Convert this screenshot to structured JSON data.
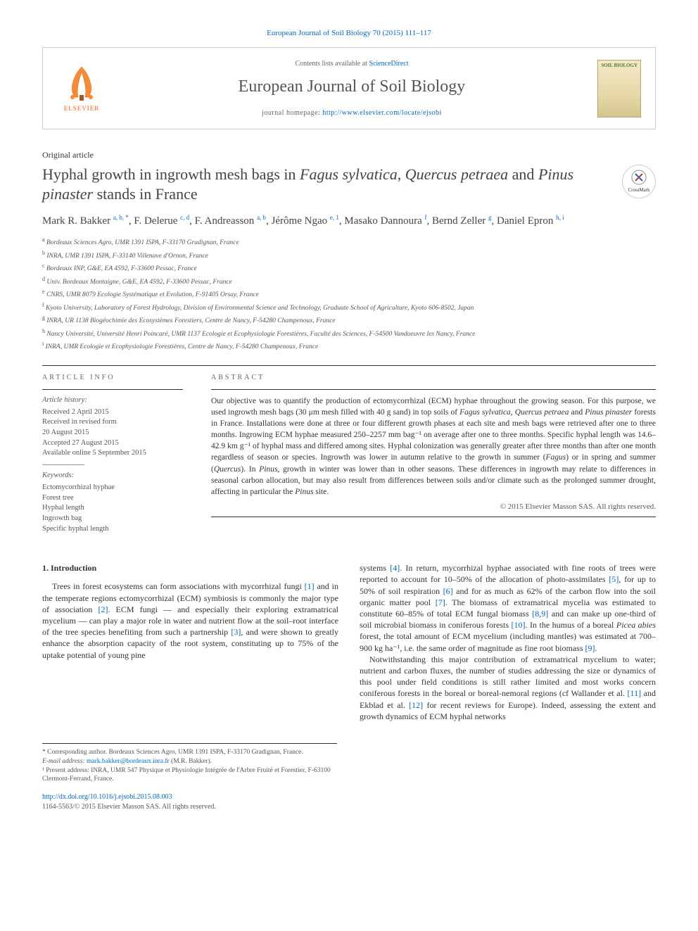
{
  "journal_ref": "European Journal of Soil Biology 70 (2015) 111–117",
  "header": {
    "contents_prefix": "Contents lists available at ",
    "contents_link": "ScienceDirect",
    "journal_name": "European Journal of Soil Biology",
    "homepage_prefix": "journal homepage: ",
    "homepage_url": "http://www.elsevier.com/locate/ejsobi",
    "elsevier_label": "ELSEVIER",
    "cover_text": "SOIL BIOLOGY"
  },
  "article_type": "Original article",
  "title_pre": "Hyphal growth in ingrowth mesh bags in ",
  "title_sp1": "Fagus sylvatica",
  "title_mid1": ", ",
  "title_sp2": "Quercus petraea",
  "title_mid2": " and ",
  "title_sp3": "Pinus pinaster",
  "title_post": " stands in France",
  "crossmark": "CrossMark",
  "authors_html": "Mark R. Bakker <sup>a, b, *</sup>, F. Delerue <sup>c, d</sup>, F. Andreasson <sup>a, b</sup>, Jérôme Ngao <sup>e, 1</sup>, Masako Dannoura <sup>f</sup>, Bernd Zeller <sup>g</sup>, Daniel Epron <sup>h, i</sup>",
  "affiliations": [
    "a Bordeaux Sciences Agro, UMR 1391 ISPA, F-33170 Gradignan, France",
    "b INRA, UMR 1391 ISPA, F-33140 Villenave d'Ornon, France",
    "c Bordeaux INP, G&E, EA 4592, F-33600 Pessac, France",
    "d Univ. Bordeaux Montaigne, G&E, EA 4592, F-33600 Pessac, France",
    "e CNRS, UMR 8079 Ecologie Systématique et Evolution, F-91405 Orsay, France",
    "f Kyoto University, Laboratory of Forest Hydrology, Division of Environmental Science and Technology, Graduate School of Agriculture, Kyoto 606-8502, Japan",
    "g INRA, UR 1138 Biogéochimie des Ecosystèmes Forestiers, Centre de Nancy, F-54280 Champenoux, France",
    "h Nancy Université, Université Henri Poincaré, UMR 1137 Ecologie et Ecophysiologie Forestières, Faculté des Sciences, F-54500 Vandoeuvre les Nancy, France",
    "i INRA, UMR Ecologie et Ecophysiologie Forestières, Centre de Nancy, F-54280 Champenoux, France"
  ],
  "info": {
    "heading": "ARTICLE INFO",
    "history_label": "Article history:",
    "history": [
      "Received 2 April 2015",
      "Received in revised form",
      "20 August 2015",
      "Accepted 27 August 2015",
      "Available online 5 September 2015"
    ],
    "keywords_label": "Keywords:",
    "keywords": [
      "Ectomycorrhizal hyphae",
      "Forest tree",
      "Hyphal length",
      "Ingrowth bag",
      "Specific hyphal length"
    ]
  },
  "abstract": {
    "heading": "ABSTRACT",
    "p1a": "Our objective was to quantify the production of ectomycorrhizal (ECM) hyphae throughout the growing season. For this purpose, we used ingrowth mesh bags (30 μm mesh filled with 40 g sand) in top soils of ",
    "sp1": "Fagus sylvatica",
    "p1b": ", ",
    "sp2": "Quercus petraea",
    "p1c": " and ",
    "sp3": "Pinus pinaster",
    "p1d": " forests in France. Installations were done at three or four different growth phases at each site and mesh bags were retrieved after one to three months. Ingrowing ECM hyphae measured 250–2257 mm bag⁻¹ on average after one to three months. Specific hyphal length was 14.6–42.9 km g⁻¹ of hyphal mass and differed among sites. Hyphal colonization was generally greater after three months than after one month regardless of season or species. Ingrowth was lower in autumn relative to the growth in summer (",
    "sp4": "Fagus",
    "p1e": ") or in spring and summer (",
    "sp5": "Quercus",
    "p1f": "). In ",
    "sp6": "Pinus",
    "p1g": ", growth in winter was lower than in other seasons. These differences in ingrowth may relate to differences in seasonal carbon allocation, but may also result from differences between soils and/or climate such as the prolonged summer drought, affecting in particular the ",
    "sp7": "Pinus",
    "p1h": " site.",
    "copyright": "© 2015 Elsevier Masson SAS. All rights reserved."
  },
  "body": {
    "heading1": "1. Introduction",
    "col1_p1": "Trees in forest ecosystems can form associations with mycorrhizal fungi [1] and in the temperate regions ectomycorrhizal (ECM) symbiosis is commonly the major type of association [2]. ECM fungi — and especially their exploring extramatrical mycelium — can play a major role in water and nutrient flow at the soil–root interface of the tree species benefiting from such a partnership [3], and were shown to greatly enhance the absorption capacity of the root system, constituting up to 75% of the uptake potential of young pine",
    "col2_p0": "systems [4]. In return, mycorrhizal hyphae associated with fine roots of trees were reported to account for 10–50% of the allocation of photo-assimilates [5], for up to 50% of soil respiration [6] and for as much as 62% of the carbon flow into the soil organic matter pool [7]. The biomass of extramatrical mycelia was estimated to constitute 60–85% of total ECM fungal biomass [8,9] and can make up one-third of soil microbial biomass in coniferous forests [10]. In the humus of a boreal ",
    "sp_picea": "Picea abies",
    "col2_p0b": " forest, the total amount of ECM mycelium (including mantles) was estimated at 700–900 kg ha⁻¹, i.e. the same order of magnitude as fine root biomass [9].",
    "col2_p1": "Notwithstanding this major contribution of extramatrical mycelium to water; nutrient and carbon fluxes, the number of studies addressing the size or dynamics of this pool under field conditions is still rather limited and most works concern coniferous forests in the boreal or boreal-nemoral regions (cf Wallander et al. [11] and Ekblad et al. [12] for recent reviews for Europe). Indeed, assessing the extent and growth dynamics of ECM hyphal networks"
  },
  "footnotes": {
    "corr": "* Corresponding author. Bordeaux Sciences Agro, UMR 1391 ISPA, F-33170 Gradignan, France.",
    "email_label": "E-mail address: ",
    "email": "mark.bakker@bordeaux.inra.fr",
    "email_suffix": " (M.R. Bakker).",
    "note1": "¹ Present address: INRA, UMR 547 Physique et Physiologie Intégrée de l'Arbre Fruité et Forestier, F-63100 Clermont-Ferrand, France."
  },
  "doi": {
    "url": "http://dx.doi.org/10.1016/j.ejsobi.2015.08.003",
    "issn_line": "1164-5563/© 2015 Elsevier Masson SAS. All rights reserved."
  },
  "colors": {
    "link": "#0066cc",
    "elsevier_orange": "#ff6600",
    "text": "#333333",
    "muted": "#666666"
  }
}
